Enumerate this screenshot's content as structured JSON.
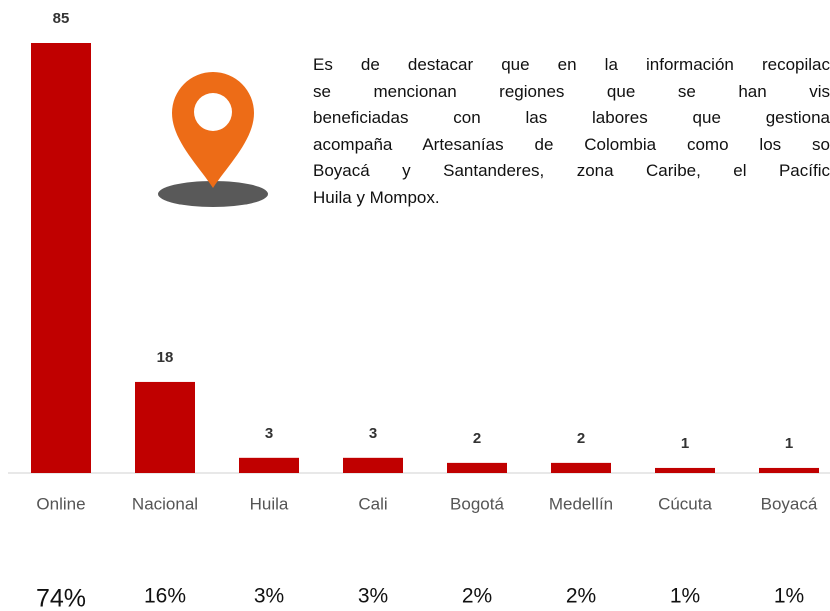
{
  "chart_data": {
    "type": "bar",
    "categories": [
      "Online",
      "Nacional",
      "Huila",
      "Cali",
      "Bogotá",
      "Medellín",
      "Cúcuta",
      "Boyacá"
    ],
    "values": [
      85,
      18,
      3,
      3,
      2,
      2,
      1,
      1
    ],
    "color": "#c00000",
    "shares": {
      "values": [
        74,
        16,
        3,
        3,
        2,
        2,
        1,
        1
      ],
      "value_labels": [
        "74%",
        "16%",
        "3%",
        "3%",
        "2%",
        "2%",
        "1%",
        "1%"
      ]
    },
    "annotation": [
      "Es de destacar que en la información recopilac",
      "se mencionan regiones que se han vis",
      "beneficiadas con las labores que gestiona",
      "acompaña Artesanías de Colombia como los so",
      "Boyacá y Santanderes, zona Caribe, el Pacífic",
      "Huila y Mompox."
    ]
  }
}
